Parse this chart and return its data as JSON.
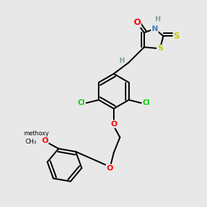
{
  "bg_color": "#e8e8e8",
  "line_color": "#000000",
  "line_width": 1.5,
  "atom_colors": {
    "O": "#ff0000",
    "N": "#4080c0",
    "S": "#c8c800",
    "Cl": "#00cc00",
    "H": "#80a0a0",
    "C": "#000000"
  },
  "font_size_atom": 8,
  "font_size_h": 7
}
